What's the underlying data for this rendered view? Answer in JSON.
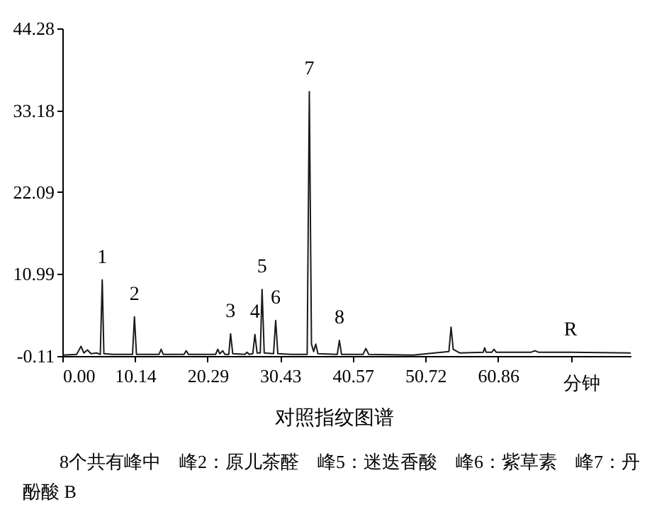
{
  "chart_data": {
    "type": "line",
    "title": "对照指纹图谱",
    "xlabel": "分钟",
    "xlim": [
      0,
      79.4
    ],
    "ylim": [
      -0.11,
      44.28
    ],
    "xticks": [
      {
        "value": 0,
        "label": "0.00"
      },
      10.14,
      20.29,
      30.43,
      40.57,
      50.72,
      60.86,
      {
        "value": 71.0,
        "label": null
      }
    ],
    "yticks": [
      -0.11,
      10.99,
      22.09,
      33.18,
      44.28
    ],
    "grid": false,
    "marker": "none",
    "line_style": "solid",
    "series": [
      {
        "color": "#1a1a1a",
        "x": [
          0,
          2.0,
          2.6,
          3.0,
          3.5,
          4.0,
          4.8,
          5.3,
          5.57,
          5.8,
          7,
          9.8,
          10.07,
          10.35,
          13.5,
          13.8,
          14.1,
          17,
          17.3,
          17.6,
          21.4,
          21.7,
          22.0,
          22.4,
          22.7,
          23.25,
          23.5,
          23.8,
          25.5,
          25.8,
          26.1,
          26.6,
          26.9,
          27.2,
          27.65,
          27.9,
          28.2,
          29.5,
          29.8,
          30.1,
          32,
          34.2,
          34.5,
          34.8,
          35.1,
          35.4,
          35.7,
          38.4,
          38.7,
          39.0,
          42.0,
          42.4,
          42.8,
          49,
          52,
          54.0,
          54.3,
          54.6,
          55.5,
          58.8,
          59.0,
          59.2,
          60.0,
          60.3,
          60.6,
          65.5,
          66,
          66.5,
          71,
          79.4
        ],
        "values": [
          0,
          0.1,
          1.2,
          0.3,
          0.7,
          0.2,
          0.3,
          0.1,
          10.2,
          0.2,
          0.1,
          0.1,
          5.2,
          0.1,
          0.1,
          0.8,
          0.1,
          0.1,
          0.6,
          0.1,
          0.1,
          0.8,
          0.2,
          0.6,
          0.1,
          0.1,
          2.9,
          0.2,
          0.1,
          0.4,
          0.1,
          0.2,
          2.8,
          0.3,
          0.3,
          8.9,
          0.3,
          0.2,
          4.7,
          0.2,
          0.1,
          0.1,
          35.7,
          1.5,
          0.5,
          1.5,
          0.2,
          0.1,
          2.0,
          0.1,
          0.1,
          0.9,
          0.1,
          0,
          0.3,
          0.5,
          3.8,
          0.8,
          0.3,
          0.4,
          1.0,
          0.4,
          0.4,
          0.8,
          0.4,
          0.4,
          0.6,
          0.4,
          0.4,
          0.3
        ]
      }
    ],
    "annotations": [
      {
        "text": "1",
        "x": 5.57,
        "y": 10.2
      },
      {
        "text": "2",
        "x": 10.07,
        "y": 5.2
      },
      {
        "text": "3",
        "x": 23.5,
        "y": 2.9
      },
      {
        "text": "4",
        "x": 26.9,
        "y": 2.8
      },
      {
        "text": "5",
        "x": 27.9,
        "y": 8.9
      },
      {
        "text": "6",
        "x": 29.8,
        "y": 4.7
      },
      {
        "text": "7",
        "x": 34.5,
        "y": 35.7
      },
      {
        "text": "8",
        "x": 38.7,
        "y": 2.0
      },
      {
        "text": "R",
        "x": 71.0,
        "y": 0.4
      },
      "8个共有峰中　峰2：原儿茶醛　峰5：迷迭香酸　峰6：紫草素　峰7：丹酚酸 B"
    ]
  }
}
